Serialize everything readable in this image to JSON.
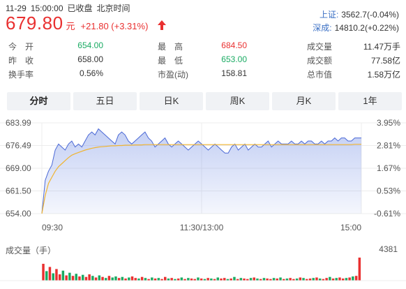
{
  "header": {
    "date": "11-29",
    "time": "15:00:00",
    "status": "已收盘",
    "tz": "北京时间"
  },
  "quote": {
    "price": "679.80",
    "unit": "元",
    "change": "+21.80 (+3.31%)",
    "up_color": "#e93030",
    "down_color": "#1aab63"
  },
  "indices": [
    {
      "label": "上证:",
      "value": "3562.7(-0.04%)"
    },
    {
      "label": "深成:",
      "value": "14810.2(+0.22%)"
    }
  ],
  "stats": [
    [
      {
        "label": "今　开",
        "value": "654.00",
        "tone": "green"
      },
      {
        "label": "最　高",
        "value": "684.50",
        "tone": "red"
      },
      {
        "label": "成交量",
        "value": "11.47万手",
        "tone": ""
      }
    ],
    [
      {
        "label": "昨　收",
        "value": "658.00",
        "tone": ""
      },
      {
        "label": "最　低",
        "value": "653.00",
        "tone": "green"
      },
      {
        "label": "成交额",
        "value": "77.58亿",
        "tone": ""
      }
    ],
    [
      {
        "label": "换手率",
        "value": "0.56%",
        "tone": ""
      },
      {
        "label": "市盈(动)",
        "value": "158.81",
        "tone": ""
      },
      {
        "label": "总市值",
        "value": "1.58万亿",
        "tone": ""
      }
    ]
  ],
  "tabs": [
    "分时",
    "五日",
    "日K",
    "周K",
    "月K",
    "1年"
  ],
  "active_tab": 0,
  "chart_data": {
    "type": "line",
    "y_left_ticks": [
      "683.99",
      "676.49",
      "669.00",
      "661.50",
      "654.00"
    ],
    "y_right_ticks": [
      "3.95%",
      "2.81%",
      "1.67%",
      "0.53%",
      "-0.61%"
    ],
    "x_ticks": [
      "09:30",
      "11:30/13:00",
      "15:00"
    ],
    "ylim": [
      654.0,
      683.99
    ],
    "price": [
      654,
      665,
      668,
      670,
      675,
      677,
      676,
      675,
      677,
      678,
      676,
      677,
      676,
      678,
      680,
      681,
      680,
      682,
      681,
      680,
      679,
      678,
      677,
      680,
      681,
      680,
      678,
      677,
      678,
      679,
      680,
      681,
      679,
      678,
      676,
      677,
      678,
      679,
      677,
      676,
      677,
      678,
      677,
      676,
      675,
      676,
      677,
      678,
      677,
      676,
      675,
      676,
      677,
      676,
      675,
      674,
      674,
      676,
      677,
      675,
      676,
      677,
      675,
      676,
      677,
      676,
      676,
      677,
      678,
      676,
      677,
      678,
      677,
      677,
      677,
      678,
      677,
      677,
      678,
      677,
      678,
      678,
      677,
      677,
      678,
      677,
      678,
      678,
      679,
      678,
      679,
      679,
      678,
      678,
      679,
      679,
      679
    ],
    "avg": [
      654,
      660,
      664,
      666,
      668,
      669.5,
      670.5,
      671.5,
      672.5,
      673.3,
      673.8,
      674.2,
      674.6,
      675,
      675.3,
      675.6,
      675.8,
      676,
      676.1,
      676.2,
      676.3,
      676.4,
      676.4,
      676.5,
      676.5,
      676.6,
      676.6,
      676.6,
      676.7,
      676.7,
      676.7,
      676.8,
      676.8,
      676.8,
      676.8,
      676.8,
      676.8,
      676.8,
      676.8,
      676.8,
      676.8,
      676.8,
      676.8,
      676.8,
      676.8,
      676.8,
      676.8,
      676.8,
      676.8,
      676.8,
      676.8,
      676.8,
      676.8,
      676.8,
      676.8,
      676.8,
      676.8,
      676.8,
      676.8,
      676.8,
      676.8,
      676.8,
      676.8,
      676.8,
      676.8,
      676.8,
      676.8,
      676.8,
      676.8,
      676.8,
      676.8,
      676.8,
      676.8,
      676.8,
      676.8,
      676.8,
      676.8,
      676.8,
      676.8,
      676.8,
      676.8,
      676.8,
      676.8,
      676.8,
      676.8,
      676.8,
      676.8,
      676.8,
      676.8,
      676.8,
      676.8,
      676.8,
      676.8,
      676.8,
      676.9,
      676.9,
      676.9
    ],
    "volume_title": "成交量（手）",
    "volume_max": "4381",
    "volume": [
      3200,
      1800,
      2600,
      1400,
      2200,
      1200,
      1900,
      1000,
      1500,
      900,
      1300,
      800,
      1100,
      700,
      1200,
      900,
      600,
      1000,
      700,
      500,
      900,
      600,
      800,
      500,
      700,
      400,
      600,
      800,
      500,
      400,
      700,
      500,
      300,
      600,
      400,
      500,
      300,
      700,
      400,
      500,
      300,
      400,
      600,
      300,
      500,
      400,
      300,
      600,
      400,
      300,
      500,
      400,
      300,
      600,
      400,
      500,
      300,
      400,
      700,
      300,
      500,
      400,
      300,
      500,
      600,
      400,
      300,
      500,
      400,
      300,
      500,
      400,
      600,
      300,
      400,
      500,
      300,
      400,
      600,
      500,
      300,
      400,
      500,
      600,
      400,
      300,
      500,
      700,
      400,
      500,
      600,
      400,
      500,
      600,
      800,
      900,
      4381
    ],
    "volume_up": [
      1,
      0,
      1,
      0,
      1,
      1,
      0,
      1,
      0,
      1,
      0,
      1,
      0,
      1,
      1,
      0,
      1,
      0,
      1,
      0,
      1,
      0,
      0,
      1,
      0,
      1,
      0,
      1,
      1,
      0,
      1,
      0,
      1,
      0,
      1,
      0,
      1,
      1,
      0,
      1,
      0,
      1,
      0,
      1,
      0,
      1,
      1,
      0,
      1,
      0,
      1,
      0,
      1,
      0,
      1,
      1,
      0,
      1,
      0,
      1,
      0,
      1,
      1,
      0,
      1,
      0,
      1,
      0,
      1,
      1,
      0,
      1,
      0,
      1,
      0,
      1,
      1,
      0,
      1,
      0,
      1,
      1,
      0,
      1,
      0,
      1,
      1,
      0,
      1,
      0,
      1,
      1,
      0,
      1,
      0,
      1,
      1
    ]
  }
}
